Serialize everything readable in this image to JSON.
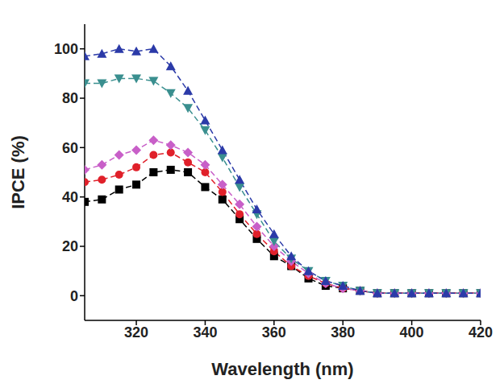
{
  "chart_data": {
    "type": "line",
    "x_label": "Wavelength (nm)",
    "y_label": "IPCE (%)",
    "x": [
      305,
      310,
      315,
      320,
      325,
      330,
      335,
      340,
      345,
      350,
      355,
      360,
      365,
      370,
      375,
      380,
      385,
      390,
      395,
      400,
      405,
      410,
      415,
      420
    ],
    "xlim": [
      305,
      420
    ],
    "xticks": [
      320,
      340,
      360,
      380,
      400,
      420
    ],
    "ylim": [
      -10,
      110
    ],
    "yticks": [
      0,
      20,
      40,
      60,
      80,
      100
    ],
    "grid": false,
    "series": [
      {
        "color": "#000000",
        "marker": "square",
        "line_style": "dashed",
        "values": [
          38,
          39,
          43,
          45,
          50,
          51,
          50,
          44,
          39,
          31,
          23,
          16,
          12,
          7,
          4,
          3,
          2,
          1,
          1,
          1,
          1,
          1,
          1,
          1
        ]
      },
      {
        "color": "#e0202a",
        "marker": "circle",
        "line_style": "dashed",
        "values": [
          46,
          47,
          49,
          52,
          57,
          58,
          54,
          50,
          42,
          33,
          25,
          18,
          12,
          8,
          5,
          3,
          2,
          1,
          1,
          1,
          1,
          1,
          1,
          1
        ]
      },
      {
        "color": "#c85fc8",
        "marker": "diamond",
        "line_style": "dashed",
        "values": [
          51,
          53,
          57,
          59,
          63,
          61,
          58,
          53,
          45,
          37,
          28,
          20,
          14,
          9,
          5,
          3,
          2,
          1,
          1,
          1,
          1,
          1,
          1,
          1
        ]
      },
      {
        "color": "#3a8f8f",
        "marker": "triangle-down",
        "line_style": "dashed",
        "values": [
          86,
          86,
          88,
          88,
          87,
          82,
          76,
          67,
          56,
          44,
          33,
          22,
          15,
          10,
          6,
          4,
          2,
          1,
          1,
          1,
          1,
          1,
          1,
          1
        ]
      },
      {
        "color": "#2b3aa8",
        "marker": "triangle-up",
        "line_style": "dashed",
        "values": [
          97,
          98,
          100,
          99,
          100,
          93,
          83,
          71,
          59,
          47,
          35,
          25,
          16,
          10,
          6,
          4,
          2,
          1,
          1,
          1,
          1,
          1,
          1,
          1
        ]
      }
    ]
  }
}
